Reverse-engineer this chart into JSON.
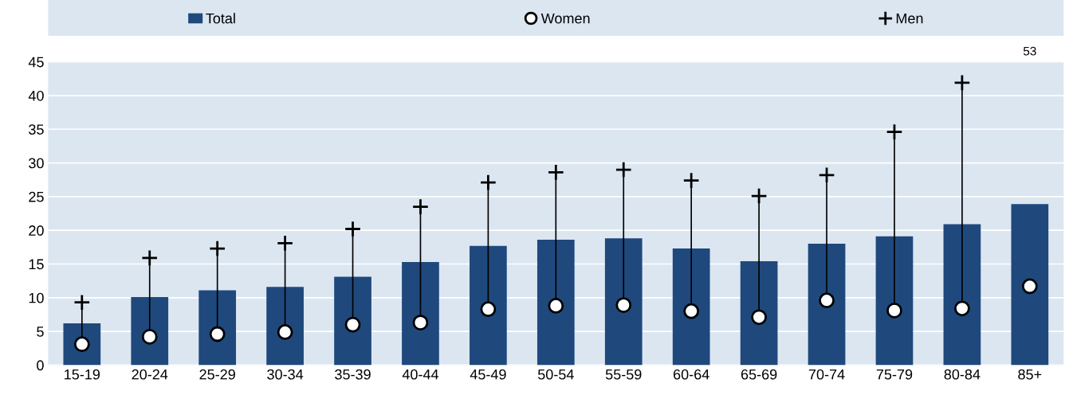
{
  "chart_data": {
    "type": "bar",
    "categories": [
      "15-19",
      "20-24",
      "25-29",
      "30-34",
      "35-39",
      "40-44",
      "45-49",
      "50-54",
      "55-59",
      "60-64",
      "65-69",
      "70-74",
      "75-79",
      "80-84",
      "85+"
    ],
    "series": [
      {
        "name": "Total",
        "color": "#1f497d",
        "values": [
          6.2,
          10.1,
          11.1,
          11.6,
          13.1,
          15.3,
          17.7,
          18.6,
          18.8,
          17.3,
          15.4,
          18.0,
          19.1,
          20.9,
          23.9
        ]
      },
      {
        "name": "Women",
        "type": "scatter",
        "marker": "circle",
        "color": "#ffffff",
        "values": [
          3.1,
          4.2,
          4.6,
          4.9,
          6.0,
          6.3,
          8.3,
          8.8,
          8.9,
          8.0,
          7.1,
          9.6,
          8.1,
          8.4,
          11.7
        ]
      },
      {
        "name": "Men",
        "type": "scatter",
        "marker": "cross",
        "color": "#000000",
        "values": [
          9.3,
          15.9,
          17.3,
          18.1,
          20.2,
          23.5,
          27.1,
          28.6,
          29.0,
          27.4,
          25.1,
          28.2,
          34.6,
          41.9,
          null
        ]
      }
    ],
    "annotations": [
      "53"
    ],
    "ylim": [
      0,
      45
    ],
    "yticks": [
      0,
      5,
      10,
      15,
      20,
      25,
      30,
      35,
      40,
      45
    ],
    "grid": "y",
    "legend": "top"
  }
}
